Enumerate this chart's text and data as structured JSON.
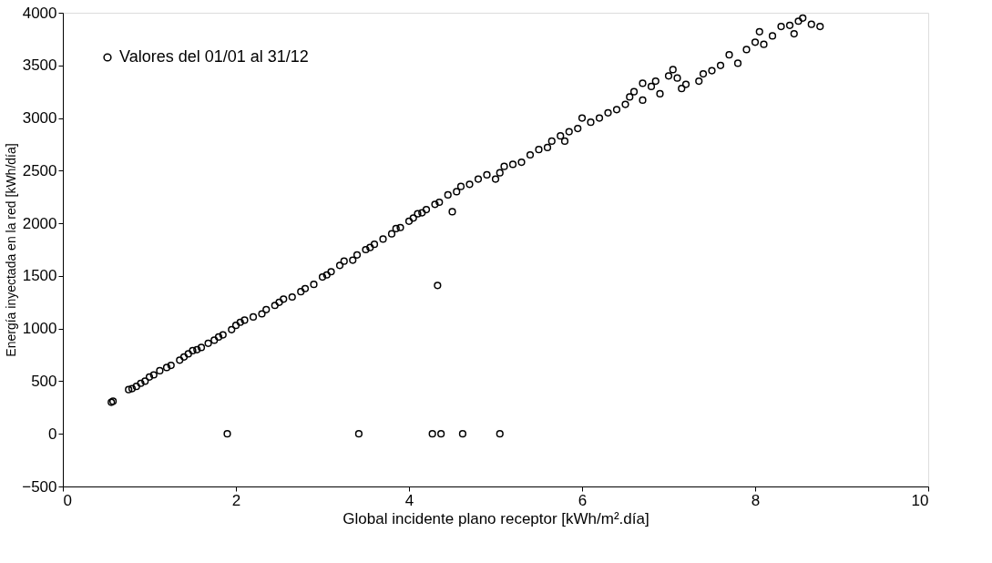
{
  "chart_data": {
    "type": "scatter",
    "xlabel": "Global incidente plano receptor [kWh/m².día]",
    "ylabel": "Energía inyectada en la red [kWh/día]",
    "xlim": [
      0,
      10
    ],
    "xticks": [
      0,
      2,
      4,
      6,
      8,
      10
    ],
    "ylim": [
      -500,
      4000
    ],
    "yticks": [
      -500,
      0,
      500,
      1000,
      1500,
      2000,
      2500,
      3000,
      3500,
      4000
    ],
    "grid": false,
    "legend": "top left",
    "marker": "circle",
    "series": [
      {
        "name": "Valores del 01/01 al 31/12",
        "color": "#000000",
        "x": [
          0.56,
          0.58,
          0.76,
          0.8,
          0.85,
          0.9,
          0.95,
          1.0,
          1.05,
          1.12,
          1.2,
          1.25,
          1.35,
          1.4,
          1.45,
          1.5,
          1.55,
          1.6,
          1.68,
          1.75,
          1.8,
          1.85,
          1.95,
          2.0,
          2.05,
          2.1,
          2.2,
          2.3,
          2.35,
          2.45,
          2.5,
          2.55,
          2.65,
          2.75,
          2.8,
          2.9,
          3.0,
          3.05,
          3.1,
          3.2,
          3.25,
          3.35,
          3.4,
          3.5,
          3.55,
          3.6,
          3.7,
          3.8,
          3.85,
          3.9,
          4.0,
          4.05,
          4.1,
          4.15,
          4.2,
          4.3,
          4.35,
          4.45,
          4.5,
          4.55,
          4.6,
          4.7,
          4.8,
          4.9,
          5.0,
          5.05,
          5.1,
          5.2,
          5.3,
          5.4,
          5.5,
          5.6,
          5.65,
          5.75,
          5.8,
          5.85,
          5.95,
          6.0,
          6.1,
          6.2,
          6.3,
          6.4,
          6.5,
          6.55,
          6.6,
          6.7,
          6.7,
          6.8,
          6.85,
          6.9,
          7.0,
          7.05,
          7.1,
          7.15,
          7.2,
          7.35,
          7.4,
          7.5,
          7.6,
          7.7,
          7.8,
          7.9,
          8.0,
          8.05,
          8.1,
          8.2,
          8.3,
          8.4,
          8.45,
          8.5,
          8.55,
          8.65,
          8.75,
          1.9,
          3.42,
          4.27,
          4.37,
          4.62,
          5.05,
          4.33
        ],
        "values": [
          300,
          310,
          420,
          430,
          450,
          480,
          500,
          540,
          560,
          600,
          630,
          650,
          700,
          730,
          760,
          790,
          800,
          820,
          860,
          890,
          920,
          940,
          990,
          1030,
          1060,
          1080,
          1110,
          1140,
          1180,
          1220,
          1250,
          1280,
          1300,
          1350,
          1380,
          1420,
          1490,
          1510,
          1540,
          1600,
          1640,
          1650,
          1700,
          1750,
          1770,
          1800,
          1850,
          1900,
          1950,
          1960,
          2020,
          2050,
          2090,
          2100,
          2130,
          2180,
          2200,
          2270,
          2110,
          2300,
          2350,
          2370,
          2420,
          2460,
          2420,
          2480,
          2540,
          2560,
          2580,
          2650,
          2700,
          2720,
          2780,
          2830,
          2780,
          2870,
          2900,
          3000,
          2960,
          3000,
          3050,
          3080,
          3130,
          3200,
          3250,
          3170,
          3330,
          3300,
          3350,
          3230,
          3400,
          3460,
          3380,
          3280,
          3320,
          3350,
          3420,
          3450,
          3500,
          3600,
          3520,
          3650,
          3720,
          3820,
          3700,
          3780,
          3870,
          3880,
          3800,
          3920,
          3950,
          3890,
          3870,
          0,
          0,
          0,
          0,
          0,
          0,
          1410
        ]
      }
    ]
  }
}
